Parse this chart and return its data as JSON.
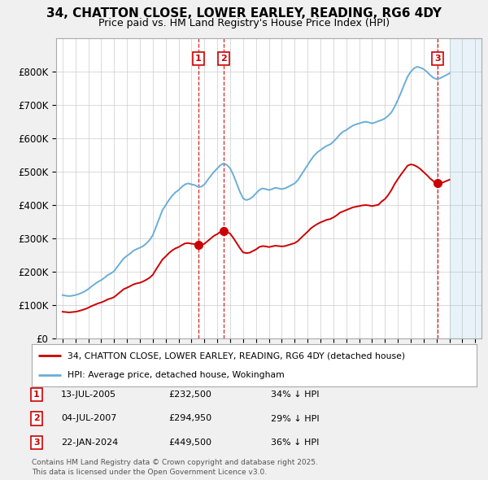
{
  "title": "34, CHATTON CLOSE, LOWER EARLEY, READING, RG6 4DY",
  "subtitle": "Price paid vs. HM Land Registry's House Price Index (HPI)",
  "red_line_label": "34, CHATTON CLOSE, LOWER EARLEY, READING, RG6 4DY (detached house)",
  "blue_line_label": "HPI: Average price, detached house, Wokingham",
  "footer": "Contains HM Land Registry data © Crown copyright and database right 2025.\nThis data is licensed under the Open Government Licence v3.0.",
  "transactions": [
    {
      "num": 1,
      "date": "13-JUL-2005",
      "price": 232500,
      "note": "34% ↓ HPI",
      "date_val": 2005.53
    },
    {
      "num": 2,
      "date": "04-JUL-2007",
      "price": 294950,
      "note": "29% ↓ HPI",
      "date_val": 2007.51
    },
    {
      "num": 3,
      "date": "22-JAN-2024",
      "price": 449500,
      "note": "36% ↓ HPI",
      "date_val": 2024.06
    }
  ],
  "hpi_color": "#6baed6",
  "price_color": "#cc0000",
  "background_color": "#f0f0f0",
  "plot_bg_color": "#ffffff",
  "grid_color": "#cccccc",
  "ylim": [
    0,
    900000
  ],
  "xlim_start": 1994.5,
  "xlim_end": 2027.5,
  "yticks": [
    0,
    100000,
    200000,
    300000,
    400000,
    500000,
    600000,
    700000,
    800000
  ],
  "xticks": [
    1995,
    1996,
    1997,
    1998,
    1999,
    2000,
    2001,
    2002,
    2003,
    2004,
    2005,
    2006,
    2007,
    2008,
    2009,
    2010,
    2011,
    2012,
    2013,
    2014,
    2015,
    2016,
    2017,
    2018,
    2019,
    2020,
    2021,
    2022,
    2023,
    2024,
    2025,
    2026,
    2027
  ],
  "hpi_data": {
    "years": [
      1995.0,
      1995.25,
      1995.5,
      1995.75,
      1996.0,
      1996.25,
      1996.5,
      1996.75,
      1997.0,
      1997.25,
      1997.5,
      1997.75,
      1998.0,
      1998.25,
      1998.5,
      1998.75,
      1999.0,
      1999.25,
      1999.5,
      1999.75,
      2000.0,
      2000.25,
      2000.5,
      2000.75,
      2001.0,
      2001.25,
      2001.5,
      2001.75,
      2002.0,
      2002.25,
      2002.5,
      2002.75,
      2003.0,
      2003.25,
      2003.5,
      2003.75,
      2004.0,
      2004.25,
      2004.5,
      2004.75,
      2005.0,
      2005.25,
      2005.5,
      2005.75,
      2006.0,
      2006.25,
      2006.5,
      2006.75,
      2007.0,
      2007.25,
      2007.5,
      2007.75,
      2008.0,
      2008.25,
      2008.5,
      2008.75,
      2009.0,
      2009.25,
      2009.5,
      2009.75,
      2010.0,
      2010.25,
      2010.5,
      2010.75,
      2011.0,
      2011.25,
      2011.5,
      2011.75,
      2012.0,
      2012.25,
      2012.5,
      2012.75,
      2013.0,
      2013.25,
      2013.5,
      2013.75,
      2014.0,
      2014.25,
      2014.5,
      2014.75,
      2015.0,
      2015.25,
      2015.5,
      2015.75,
      2016.0,
      2016.25,
      2016.5,
      2016.75,
      2017.0,
      2017.25,
      2017.5,
      2017.75,
      2018.0,
      2018.25,
      2018.5,
      2018.75,
      2019.0,
      2019.25,
      2019.5,
      2019.75,
      2020.0,
      2020.25,
      2020.5,
      2020.75,
      2021.0,
      2021.25,
      2021.5,
      2021.75,
      2022.0,
      2022.25,
      2022.5,
      2022.75,
      2023.0,
      2023.25,
      2023.5,
      2023.75,
      2024.0,
      2024.25,
      2024.5,
      2024.75,
      2025.0
    ],
    "values": [
      130000,
      128000,
      127000,
      128000,
      130000,
      133000,
      137000,
      142000,
      148000,
      156000,
      163000,
      170000,
      175000,
      182000,
      190000,
      195000,
      202000,
      215000,
      228000,
      240000,
      248000,
      255000,
      263000,
      268000,
      272000,
      277000,
      285000,
      295000,
      310000,
      335000,
      360000,
      385000,
      400000,
      415000,
      428000,
      438000,
      445000,
      455000,
      462000,
      465000,
      462000,
      460000,
      455000,
      455000,
      462000,
      475000,
      488000,
      500000,
      510000,
      520000,
      525000,
      520000,
      510000,
      490000,
      465000,
      440000,
      420000,
      415000,
      418000,
      425000,
      435000,
      445000,
      450000,
      448000,
      445000,
      448000,
      452000,
      450000,
      448000,
      450000,
      455000,
      460000,
      465000,
      475000,
      490000,
      505000,
      520000,
      535000,
      548000,
      558000,
      565000,
      572000,
      578000,
      582000,
      590000,
      600000,
      612000,
      620000,
      625000,
      632000,
      638000,
      642000,
      645000,
      648000,
      650000,
      648000,
      645000,
      648000,
      652000,
      655000,
      660000,
      668000,
      678000,
      695000,
      715000,
      738000,
      762000,
      785000,
      800000,
      810000,
      815000,
      812000,
      808000,
      800000,
      790000,
      782000,
      778000,
      780000,
      785000,
      790000,
      795000
    ]
  },
  "price_data": {
    "years": [
      1995.0,
      1995.25,
      1995.5,
      1995.75,
      1996.0,
      1996.25,
      1996.5,
      1996.75,
      1997.0,
      1997.25,
      1997.5,
      1997.75,
      1998.0,
      1998.25,
      1998.5,
      1998.75,
      1999.0,
      1999.25,
      1999.5,
      1999.75,
      2000.0,
      2000.25,
      2000.5,
      2000.75,
      2001.0,
      2001.25,
      2001.5,
      2001.75,
      2002.0,
      2002.25,
      2002.5,
      2002.75,
      2003.0,
      2003.25,
      2003.5,
      2003.75,
      2004.0,
      2004.25,
      2004.5,
      2004.75,
      2005.0,
      2005.25,
      2005.5,
      2005.75,
      2006.0,
      2006.25,
      2006.5,
      2006.75,
      2007.0,
      2007.25,
      2007.5,
      2007.75,
      2008.0,
      2008.25,
      2008.5,
      2008.75,
      2009.0,
      2009.25,
      2009.5,
      2009.75,
      2010.0,
      2010.25,
      2010.5,
      2010.75,
      2011.0,
      2011.25,
      2011.5,
      2011.75,
      2012.0,
      2012.25,
      2012.5,
      2012.75,
      2013.0,
      2013.25,
      2013.5,
      2013.75,
      2014.0,
      2014.25,
      2014.5,
      2014.75,
      2015.0,
      2015.25,
      2015.5,
      2015.75,
      2016.0,
      2016.25,
      2016.5,
      2016.75,
      2017.0,
      2017.25,
      2017.5,
      2017.75,
      2018.0,
      2018.25,
      2018.5,
      2018.75,
      2019.0,
      2019.25,
      2019.5,
      2019.75,
      2020.0,
      2020.25,
      2020.5,
      2020.75,
      2021.0,
      2021.25,
      2021.5,
      2021.75,
      2022.0,
      2022.25,
      2022.5,
      2022.75,
      2023.0,
      2023.25,
      2023.5,
      2023.75,
      2024.0,
      2024.25,
      2024.5,
      2024.75,
      2025.0
    ],
    "values": [
      80000,
      79000,
      78000,
      79000,
      80000,
      82000,
      85000,
      88000,
      92000,
      97000,
      101000,
      105000,
      108000,
      112000,
      117000,
      120000,
      124000,
      132000,
      140000,
      148000,
      152000,
      157000,
      162000,
      165000,
      167000,
      171000,
      176000,
      182000,
      191000,
      207000,
      222000,
      237000,
      246000,
      256000,
      264000,
      270000,
      274000,
      280000,
      285000,
      286000,
      284000,
      283000,
      280000,
      280000,
      284000,
      292000,
      300000,
      308000,
      313000,
      320000,
      323000,
      320000,
      314000,
      301000,
      286000,
      271000,
      258000,
      256000,
      257000,
      262000,
      267000,
      274000,
      277000,
      276000,
      274000,
      276000,
      278000,
      277000,
      276000,
      277000,
      280000,
      283000,
      286000,
      292000,
      302000,
      311000,
      320000,
      330000,
      337000,
      343000,
      348000,
      352000,
      356000,
      358000,
      363000,
      369000,
      377000,
      381000,
      385000,
      389000,
      393000,
      395000,
      397000,
      399000,
      400000,
      399000,
      397000,
      399000,
      401000,
      411000,
      418000,
      430000,
      445000,
      463000,
      478000,
      492000,
      505000,
      518000,
      522000,
      520000,
      515000,
      508000,
      499000,
      490000,
      480000,
      472000,
      465000,
      465000,
      468000,
      472000,
      476000
    ]
  }
}
